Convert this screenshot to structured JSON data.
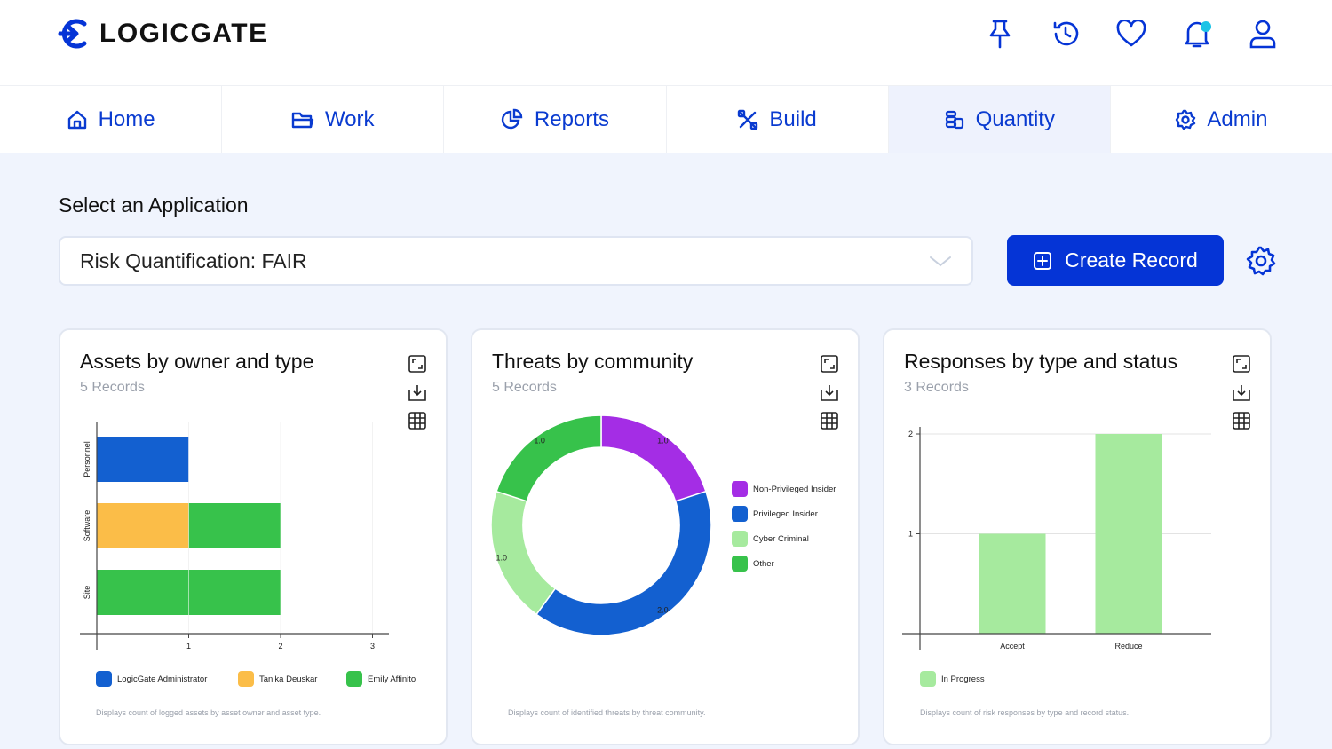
{
  "brand": {
    "name": "LOGICGATE",
    "accent": "#0534d6"
  },
  "top_icons": [
    "pin-icon",
    "history-icon",
    "heart-icon",
    "bell-icon",
    "user-icon"
  ],
  "nav": {
    "items": [
      {
        "label": "Home",
        "icon": "home-icon"
      },
      {
        "label": "Work",
        "icon": "folder-icon"
      },
      {
        "label": "Reports",
        "icon": "reports-icon"
      },
      {
        "label": "Build",
        "icon": "build-icon"
      },
      {
        "label": "Quantity",
        "icon": "quantity-icon"
      },
      {
        "label": "Admin",
        "icon": "gear-icon"
      }
    ],
    "active": "Quantity"
  },
  "app_select": {
    "label": "Select an Application",
    "value": "Risk Quantification: FAIR"
  },
  "create_record_label": "Create Record",
  "cards": [
    {
      "title": "Assets by owner and type",
      "subtitle": "5 Records",
      "footnote": "Displays count of logged assets by asset owner and asset type."
    },
    {
      "title": "Threats by community",
      "subtitle": "5 Records",
      "footnote": "Displays count of identified threats by threat community."
    },
    {
      "title": "Responses by type and status",
      "subtitle": "3 Records",
      "footnote": "Displays count of risk responses by type and record status."
    }
  ],
  "chart_data": [
    {
      "type": "bar",
      "orientation": "horizontal",
      "stacked": true,
      "categories": [
        "Personnel",
        "Software",
        "Site"
      ],
      "series": [
        {
          "name": "LogicGate Administrator",
          "color": "#1360d0",
          "values": [
            1,
            0,
            0
          ]
        },
        {
          "name": "Tanika Deuskar",
          "color": "#fbbd48",
          "values": [
            0,
            1,
            0
          ]
        },
        {
          "name": "Emily Affinito",
          "color": "#37c24b",
          "values": [
            0,
            1,
            2
          ]
        }
      ],
      "xticks": [
        "1",
        "2",
        "3"
      ],
      "xlim": [
        0,
        3
      ],
      "legend": "bottom"
    },
    {
      "type": "pie",
      "donut": true,
      "slices": [
        {
          "name": "Non-Privileged Insider",
          "value": 1.0,
          "label": "1.0",
          "color": "#a42de5"
        },
        {
          "name": "Privileged Insider",
          "value": 2.0,
          "label": "2.0",
          "color": "#1360d0"
        },
        {
          "name": "Cyber Criminal",
          "value": 1.0,
          "label": "1.0",
          "color": "#a6ea9e"
        },
        {
          "name": "Other",
          "value": 1.0,
          "label": "1.0",
          "color": "#37c24b"
        }
      ],
      "legend": "right"
    },
    {
      "type": "bar",
      "categories": [
        "Accept",
        "Reduce"
      ],
      "series": [
        {
          "name": "In Progress",
          "color": "#a6ea9e",
          "values": [
            1,
            2
          ]
        }
      ],
      "yticks": [
        "1",
        "2"
      ],
      "ylim": [
        0,
        2
      ],
      "legend": "bottom"
    }
  ]
}
